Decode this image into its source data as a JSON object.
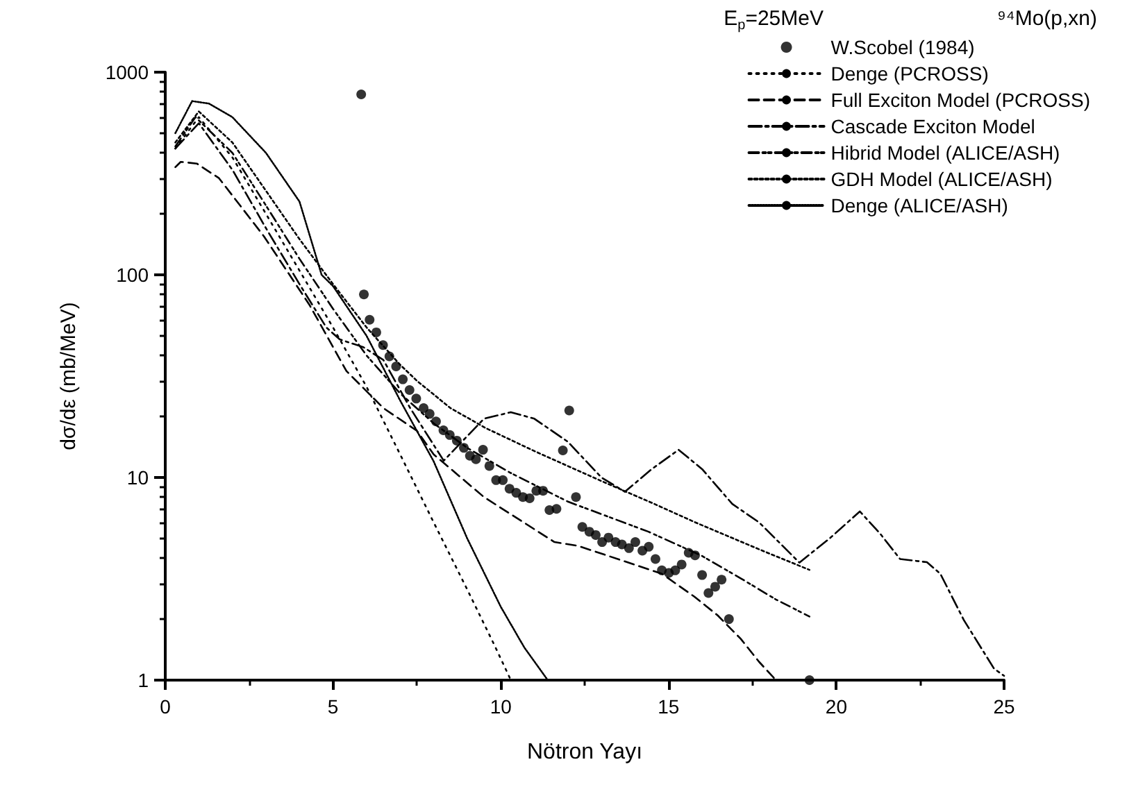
{
  "chart_data": {
    "type": "line",
    "xlabel": "Nötron Yayı",
    "ylabel": "dσ/dε (mb/MeV)",
    "annotations": [
      "E$_{p}$=25MeV",
      "⁹⁴Mo(p,xn)"
    ],
    "log": "y",
    "grid": false,
    "legend": "top right",
    "marker": "none",
    "xlim": [
      0,
      25
    ],
    "xticks": [
      0,
      5,
      10,
      15,
      20,
      25
    ],
    "ylim": [
      1,
      1000
    ],
    "yticks": [
      1,
      10,
      100,
      1000
    ],
    "series": [
      {
        "name": "W.Scobel (1984)",
        "type": "scatter",
        "marker": "circle",
        "color": "#000000",
        "x": [
          5.84,
          5.92,
          6.09,
          6.29,
          6.49,
          6.68,
          6.88,
          7.08,
          7.28,
          7.48,
          7.7,
          7.88,
          8.07,
          8.29,
          8.48,
          8.69,
          8.9,
          9.08,
          9.26,
          9.47,
          9.66,
          9.86,
          10.06,
          10.26,
          10.46,
          10.66,
          10.86,
          11.06,
          11.26,
          11.45,
          11.66,
          11.85,
          12.04,
          12.24,
          12.43,
          12.64,
          12.83,
          13.02,
          13.21,
          13.42,
          13.61,
          13.82,
          14.01,
          14.22,
          14.41,
          14.61,
          14.8,
          15.01,
          15.2,
          15.39,
          15.6,
          15.79,
          16.0,
          16.19,
          16.39,
          16.58,
          16.8,
          19.2
        ],
        "values": [
          777,
          80,
          60,
          52,
          45,
          39.6,
          35.3,
          30.5,
          27,
          24.5,
          22,
          20.6,
          18.9,
          17.1,
          16.2,
          15.2,
          14,
          12.8,
          12.3,
          13.7,
          11.4,
          9.7,
          9.7,
          8.8,
          8.4,
          8,
          7.9,
          8.6,
          8.6,
          6.9,
          7,
          13.6,
          21.4,
          8,
          5.7,
          5.4,
          5.2,
          4.8,
          5.05,
          4.8,
          4.67,
          4.48,
          4.8,
          4.35,
          4.55,
          3.96,
          3.48,
          3.38,
          3.48,
          3.72,
          4.25,
          4.13,
          3.3,
          2.69,
          2.89,
          3.13,
          2,
          1
        ]
      },
      {
        "name": "Denge (PCROSS)",
        "color": "#000000",
        "line_style": "dotted",
        "x": [
          0.3,
          1,
          2,
          3,
          4,
          5,
          6,
          7,
          8,
          9,
          9.8,
          10.3
        ],
        "values": [
          420,
          600,
          380,
          200,
          105,
          55,
          28,
          13,
          6,
          2.8,
          1.5,
          1
        ]
      },
      {
        "name": "Full Exciton Model (PCROSS)",
        "color": "#000000",
        "line_style": "dashed",
        "x": [
          0.3,
          0.46,
          0.94,
          1.6,
          2.94,
          4.3,
          5.4,
          6.5,
          7.5,
          8,
          9.5,
          11.6,
          12.3,
          14.8,
          15.77,
          16.46,
          17.15,
          17.7,
          18.2
        ],
        "values": [
          340,
          361,
          354,
          300,
          155,
          71,
          33.5,
          22,
          17,
          13,
          8,
          4.8,
          4.6,
          3.35,
          2.58,
          2.09,
          1.6,
          1.23,
          1
        ]
      },
      {
        "name": "Cascade Exciton Model",
        "color": "#000000",
        "line_style": "dashed",
        "x": [
          0.3,
          1,
          2,
          3,
          4,
          4.8,
          5.2,
          5.9,
          6.5,
          7.3,
          8.3,
          9,
          9.5,
          10.3,
          11,
          12,
          13,
          13.7,
          14.5,
          15.3,
          16,
          16.9,
          17.7,
          18.9,
          19.8,
          20.7,
          21.3,
          21.9,
          22.7,
          23.1,
          23.8,
          24.7,
          25
        ],
        "values": [
          420,
          560,
          330,
          170,
          90,
          55,
          48,
          44,
          38,
          22,
          12.1,
          16,
          19.5,
          21,
          19.5,
          15,
          10,
          8.5,
          11,
          13.7,
          11,
          7.4,
          6,
          3.8,
          5,
          6.8,
          5.3,
          3.96,
          3.82,
          3.35,
          1.98,
          1.14,
          1.05
        ]
      },
      {
        "name": "Hibrid Model (ALICE/ASH)",
        "color": "#000000",
        "line_style": "dashed",
        "x": [
          0.3,
          0.9,
          2,
          3,
          4,
          5,
          6,
          7,
          8,
          9,
          10.26,
          12,
          14.4,
          16,
          17.15,
          18.2,
          19.2
        ],
        "values": [
          430,
          600,
          400,
          220,
          120,
          68,
          40,
          26,
          18.5,
          14,
          10.6,
          7.6,
          5.4,
          4.1,
          3.18,
          2.5,
          2.06
        ]
      },
      {
        "name": "GDH Model (ALICE/ASH)",
        "color": "#000000",
        "line_style": "dotted",
        "x": [
          0.3,
          1,
          2,
          3,
          4,
          5,
          6,
          7,
          7.5,
          8.5,
          9.56,
          11,
          13,
          14.5,
          15.8,
          17.8,
          19.2
        ],
        "values": [
          450,
          640,
          450,
          260,
          150,
          90,
          55,
          36,
          30,
          22,
          17.5,
          13.5,
          9.6,
          7.5,
          6,
          4.35,
          3.5
        ]
      },
      {
        "name": "Denge (ALICE/ASH)",
        "color": "#000000",
        "line_style": "dotted",
        "x": [
          0.3,
          0.8,
          1.3,
          2,
          3,
          4,
          4.66,
          5,
          6,
          7,
          8,
          9,
          10,
          10.7,
          11.4
        ],
        "values": [
          500,
          720,
          700,
          600,
          400,
          230,
          100,
          88,
          50,
          24,
          12,
          5,
          2.3,
          1.45,
          1
        ]
      }
    ]
  }
}
